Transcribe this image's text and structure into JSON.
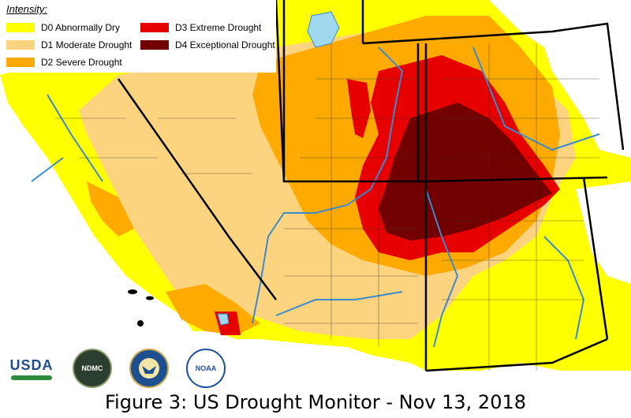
{
  "legend": {
    "title": "Intensity:",
    "items": [
      {
        "label": "D0 Abnormally Dry",
        "color": "#ffff00"
      },
      {
        "label": "D1 Moderate Drought",
        "color": "#fcd37f"
      },
      {
        "label": "D2 Severe Drought",
        "color": "#ffaa00"
      },
      {
        "label": "D3 Extreme Drought",
        "color": "#e60000"
      },
      {
        "label": "D4 Exceptional Drought",
        "color": "#730000"
      }
    ]
  },
  "logos": {
    "usda": "USDA",
    "ndmc": "NDMC",
    "noaa": "NOAA"
  },
  "caption": "Figure 3: US Drought Monitor - Nov 13, 2018"
}
